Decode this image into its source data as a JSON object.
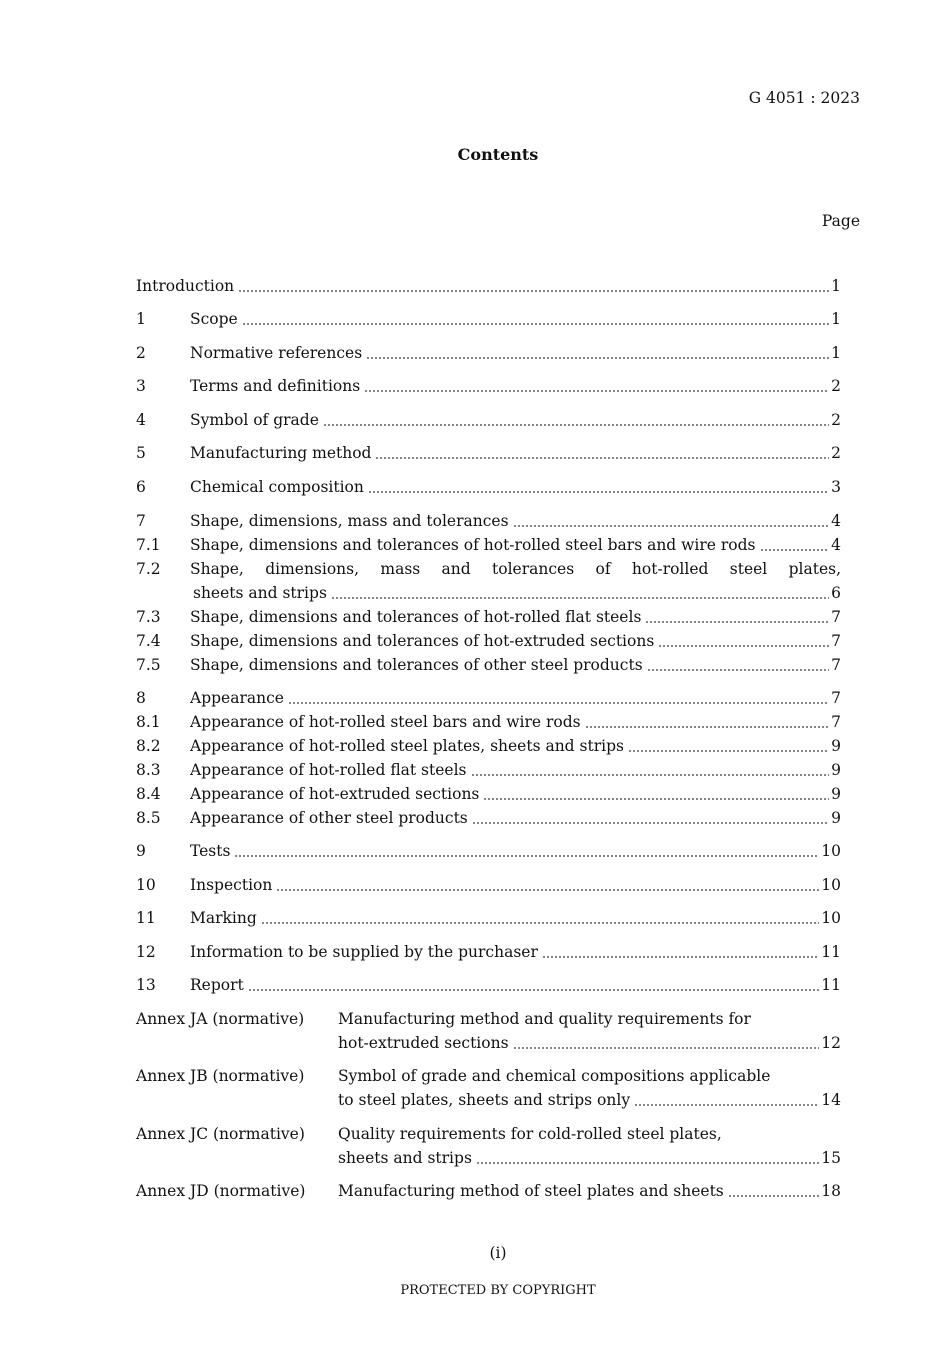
{
  "header": {
    "doc_id": "G 4051 : 2023",
    "title": "Contents",
    "page_label": "Page"
  },
  "entries": [
    {
      "num": "",
      "title": "Introduction",
      "page": "1"
    },
    {
      "num": "1",
      "title": "Scope",
      "page": "1"
    },
    {
      "num": "2",
      "title": "Normative references",
      "page": "1"
    },
    {
      "num": "3",
      "title": "Terms and definitions",
      "page": "2"
    },
    {
      "num": "4",
      "title": "Symbol of grade",
      "page": "2"
    },
    {
      "num": "5",
      "title": "Manufacturing method",
      "page": "2"
    },
    {
      "num": "6",
      "title": "Chemical composition",
      "page": "3"
    },
    {
      "num": "7",
      "title": "Shape, dimensions, mass and tolerances",
      "page": "4"
    },
    {
      "num": "7.1",
      "title": "Shape, dimensions and tolerances of hot-rolled steel bars and wire rods",
      "page": "4"
    },
    {
      "num": "7.2",
      "title": "Shape, dimensions, mass and tolerances of hot-rolled steel plates,",
      "title2": "sheets and strips",
      "page": "6"
    },
    {
      "num": "7.3",
      "title": "Shape, dimensions and tolerances of hot-rolled flat steels",
      "page": "7"
    },
    {
      "num": "7.4",
      "title": "Shape, dimensions and tolerances of hot-extruded sections",
      "page": "7"
    },
    {
      "num": "7.5",
      "title": "Shape, dimensions and tolerances of other steel products",
      "page": "7"
    },
    {
      "num": "8",
      "title": "Appearance",
      "page": "7"
    },
    {
      "num": "8.1",
      "title": "Appearance of hot-rolled steel bars and wire rods",
      "page": "7"
    },
    {
      "num": "8.2",
      "title": "Appearance of hot-rolled steel plates, sheets and strips",
      "page": "9"
    },
    {
      "num": "8.3",
      "title": "Appearance of hot-rolled flat steels",
      "page": "9"
    },
    {
      "num": "8.4",
      "title": "Appearance of hot-extruded sections",
      "page": "9"
    },
    {
      "num": "8.5",
      "title": "Appearance of other steel products",
      "page": "9"
    },
    {
      "num": "9",
      "title": "Tests",
      "page": "10"
    },
    {
      "num": "10",
      "title": "Inspection",
      "page": "10"
    },
    {
      "num": "11",
      "title": "Marking",
      "page": "10"
    },
    {
      "num": "12",
      "title": "Information to be supplied by the purchaser",
      "page": "11"
    },
    {
      "num": "13",
      "title": "Report",
      "page": "11"
    },
    {
      "num": "Annex JA (normative)",
      "title": "Manufacturing method and quality requirements for",
      "title2": "hot-extruded sections",
      "page": "12",
      "annex": true
    },
    {
      "num": "Annex JB (normative)",
      "title": "Symbol of grade and chemical compositions applicable",
      "title2": "to steel plates, sheets and strips only",
      "page": "14",
      "annex": true
    },
    {
      "num": "Annex JC (normative)",
      "title": "Quality requirements for cold-rolled steel plates,",
      "title2": "sheets and strips",
      "page": "15",
      "annex": true
    },
    {
      "num": "Annex JD (normative)",
      "title": "Manufacturing method of steel plates and sheets",
      "page": "18",
      "annex": true
    }
  ],
  "footer": {
    "folio": "(i)",
    "copyright": "PROTECTED BY COPYRIGHT"
  }
}
